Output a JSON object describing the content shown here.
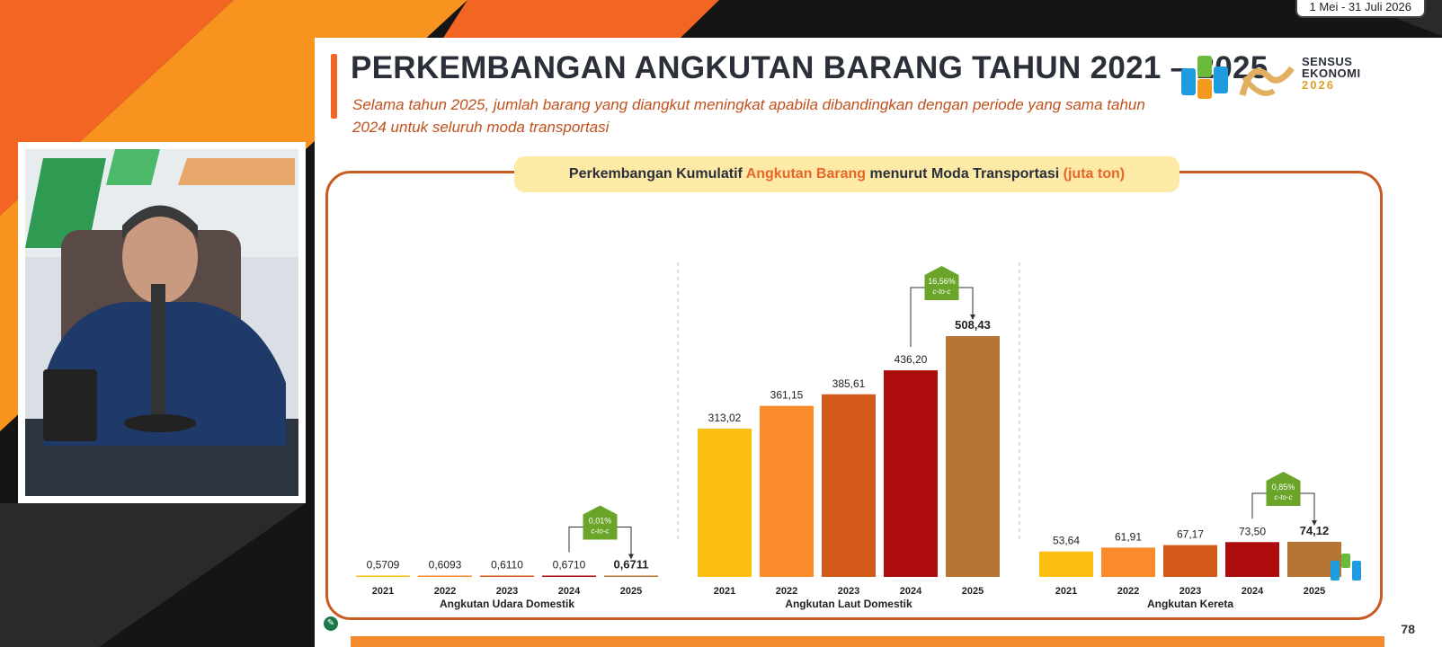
{
  "broadcast": {
    "date_range": "1 Mei - 31 Juli 2026"
  },
  "slide": {
    "title": "PERKEMBANGAN ANGKUTAN BARANG TAHUN 2021 – 2025",
    "subtitle": "Selama tahun 2025, jumlah barang yang diangkut meningkat apabila dibandingkan dengan periode yang sama tahun 2024 untuk seluruh moda transportasi",
    "logo": {
      "text_line1": "SENSUS",
      "text_line2": "EKONOMI",
      "text_year": "2026"
    },
    "chart_title": {
      "part1": "Perkembangan Kumulatif ",
      "part2": "Angkutan Barang",
      "part3": " menurut Moda Transportasi ",
      "part4": "(juta ton)"
    },
    "page_number": "78",
    "colors": {
      "accent_orange": "#f26522",
      "panel_border": "#c85a22",
      "growth_badge": "#6aa52a",
      "year_colors": [
        "#fbbf12",
        "#f98b2a",
        "#d45a1c",
        "#ac0c0c",
        "#b57535"
      ]
    }
  },
  "chart_data": {
    "type": "bar",
    "groups": [
      {
        "name": "Angkutan Udara Domestik",
        "categories": [
          "2021",
          "2022",
          "2023",
          "2024",
          "2025"
        ],
        "values": [
          0.5709,
          0.6093,
          0.611,
          0.671,
          0.6711
        ],
        "value_labels": [
          "0,5709",
          "0,6093",
          "0,6110",
          "0,6710",
          "0,6711"
        ],
        "growth": {
          "value": "0,01%",
          "label": "c-to-c"
        }
      },
      {
        "name": "Angkutan Laut Domestik",
        "categories": [
          "2021",
          "2022",
          "2023",
          "2024",
          "2025"
        ],
        "values": [
          313.02,
          361.15,
          385.61,
          436.2,
          508.43
        ],
        "value_labels": [
          "313,02",
          "361,15",
          "385,61",
          "436,20",
          "508,43"
        ],
        "growth": {
          "value": "16,56%",
          "label": "c-to-c"
        }
      },
      {
        "name": "Angkutan Kereta",
        "categories": [
          "2021",
          "2022",
          "2023",
          "2024",
          "2025"
        ],
        "values": [
          53.64,
          61.91,
          67.17,
          73.5,
          74.12
        ],
        "value_labels": [
          "53,64",
          "61,91",
          "67,17",
          "73,50",
          "74,12"
        ],
        "growth": {
          "value": "0,85%",
          "label": "c-to-c"
        }
      }
    ]
  }
}
